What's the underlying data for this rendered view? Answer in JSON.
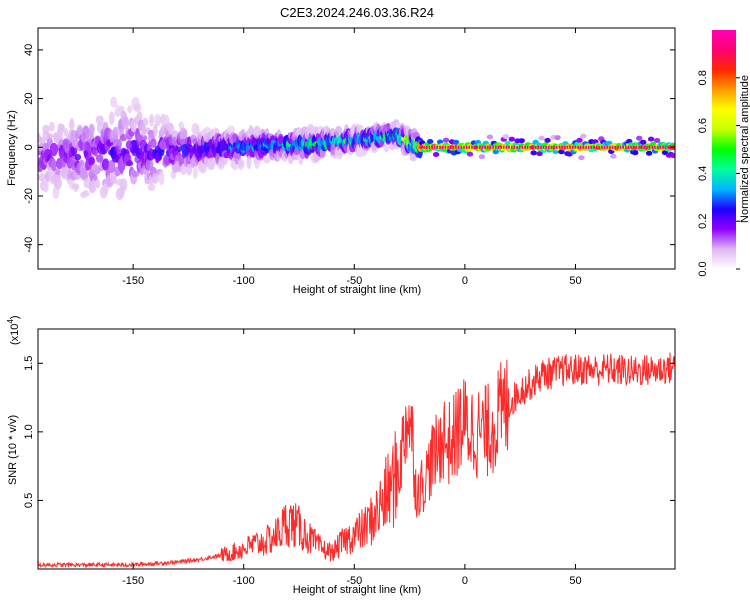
{
  "title": "C2E3.2024.246.03.36.R24",
  "chart_data": [
    {
      "type": "heatmap",
      "title": "",
      "xlabel": "Height of straight line (km)",
      "ylabel": "Frequency (Hz)",
      "xlim": [
        -193,
        95
      ],
      "ylim": [
        -50,
        49
      ],
      "x_ticks": [
        "-150",
        "-100",
        "-50",
        "0",
        "50"
      ],
      "x_tick_values": [
        -150,
        -100,
        -50,
        0,
        50
      ],
      "y_ticks": [
        "40",
        "20",
        "0",
        "-20",
        "-40"
      ],
      "y_tick_values": [
        40,
        20,
        0,
        -20,
        -40
      ],
      "colorbar": {
        "label": "Normalized spectral amplitude",
        "range": [
          0,
          1
        ],
        "ticks": [
          "0.0",
          "0.2",
          "0.4",
          "0.6",
          "0.8"
        ],
        "tick_values": [
          0.0,
          0.2,
          0.4,
          0.6,
          0.8
        ],
        "colormap": [
          "#ffffff",
          "#e0b6f2",
          "#8f00ff",
          "#1f00ff",
          "#00b6ff",
          "#00ff9e",
          "#00ff00",
          "#c6ff00",
          "#ffff00",
          "#ff9a00",
          "#ff2600",
          "#ff0073",
          "#ff00b4"
        ]
      },
      "series": [
        {
          "x": [
            -190,
            -180,
            -170,
            -160,
            -150,
            -140,
            -130,
            -120,
            -110,
            -100,
            -90,
            -80,
            -70,
            -60,
            -50,
            -40,
            -30,
            -25,
            -20,
            -10,
            0,
            10,
            20,
            30,
            40,
            50,
            60,
            70,
            80,
            90
          ],
          "center_frequency": [
            -4,
            -3,
            -3,
            -2,
            -2,
            -2,
            -1,
            -1,
            0,
            0,
            1,
            1,
            1,
            2,
            3,
            4,
            5,
            2,
            0,
            0,
            0,
            0,
            0,
            0,
            0,
            0,
            0,
            0,
            0,
            0
          ],
          "spread": [
            30,
            32,
            34,
            38,
            40,
            30,
            20,
            14,
            12,
            10,
            9,
            8,
            8,
            7,
            6,
            5,
            4,
            3,
            2,
            2,
            2,
            2,
            2,
            2,
            2,
            2,
            2,
            2,
            2,
            2
          ],
          "peak_amplitude": [
            0.2,
            0.22,
            0.25,
            0.25,
            0.25,
            0.25,
            0.28,
            0.3,
            0.35,
            0.45,
            0.48,
            0.5,
            0.55,
            0.55,
            0.58,
            0.6,
            0.62,
            0.85,
            0.95,
            0.95,
            0.95,
            0.95,
            0.95,
            0.95,
            0.95,
            0.95,
            0.95,
            0.95,
            0.95,
            0.95
          ]
        }
      ]
    },
    {
      "type": "line",
      "title": "",
      "xlabel": "Height of straight line (km)",
      "ylabel": "SNR (10 * v/v)",
      "multiplier_label": "(x10",
      "multiplier_exponent": "4",
      "multiplier_close": ")",
      "xlim": [
        -193,
        95
      ],
      "ylim": [
        0,
        1.75
      ],
      "x_ticks": [
        "-150",
        "-100",
        "-50",
        "0",
        "50"
      ],
      "x_tick_values": [
        -150,
        -100,
        -50,
        0,
        50
      ],
      "y_ticks": [
        "1.5",
        "1.0",
        "0.5"
      ],
      "y_tick_values": [
        1.5,
        1.0,
        0.5
      ],
      "color": "#ff2a2a",
      "series": [
        {
          "x": [
            -193,
            -180,
            -170,
            -160,
            -150,
            -140,
            -130,
            -120,
            -110,
            -105,
            -100,
            -95,
            -90,
            -85,
            -80,
            -75,
            -70,
            -65,
            -60,
            -55,
            -50,
            -45,
            -40,
            -35,
            -30,
            -28,
            -26,
            -24,
            -22,
            -20,
            -18,
            -15,
            -12,
            -10,
            -8,
            -5,
            -2,
            0,
            5,
            10,
            15,
            20,
            25,
            30,
            35,
            40,
            45,
            50,
            55,
            60,
            65,
            70,
            75,
            80,
            85,
            90,
            95
          ],
          "y": [
            0.03,
            0.03,
            0.03,
            0.03,
            0.03,
            0.04,
            0.05,
            0.07,
            0.1,
            0.12,
            0.15,
            0.18,
            0.2,
            0.25,
            0.35,
            0.3,
            0.22,
            0.15,
            0.12,
            0.2,
            0.25,
            0.3,
            0.4,
            0.55,
            0.7,
            0.9,
            1.15,
            1.0,
            0.55,
            0.6,
            0.65,
            0.8,
            0.85,
            1.0,
            0.9,
            0.95,
            1.05,
            1.05,
            1.0,
            1.0,
            1.1,
            1.2,
            1.3,
            1.35,
            1.42,
            1.43,
            1.45,
            1.45,
            1.46,
            1.45,
            1.46,
            1.45,
            1.44,
            1.45,
            1.45,
            1.46,
            1.47
          ]
        }
      ]
    }
  ]
}
